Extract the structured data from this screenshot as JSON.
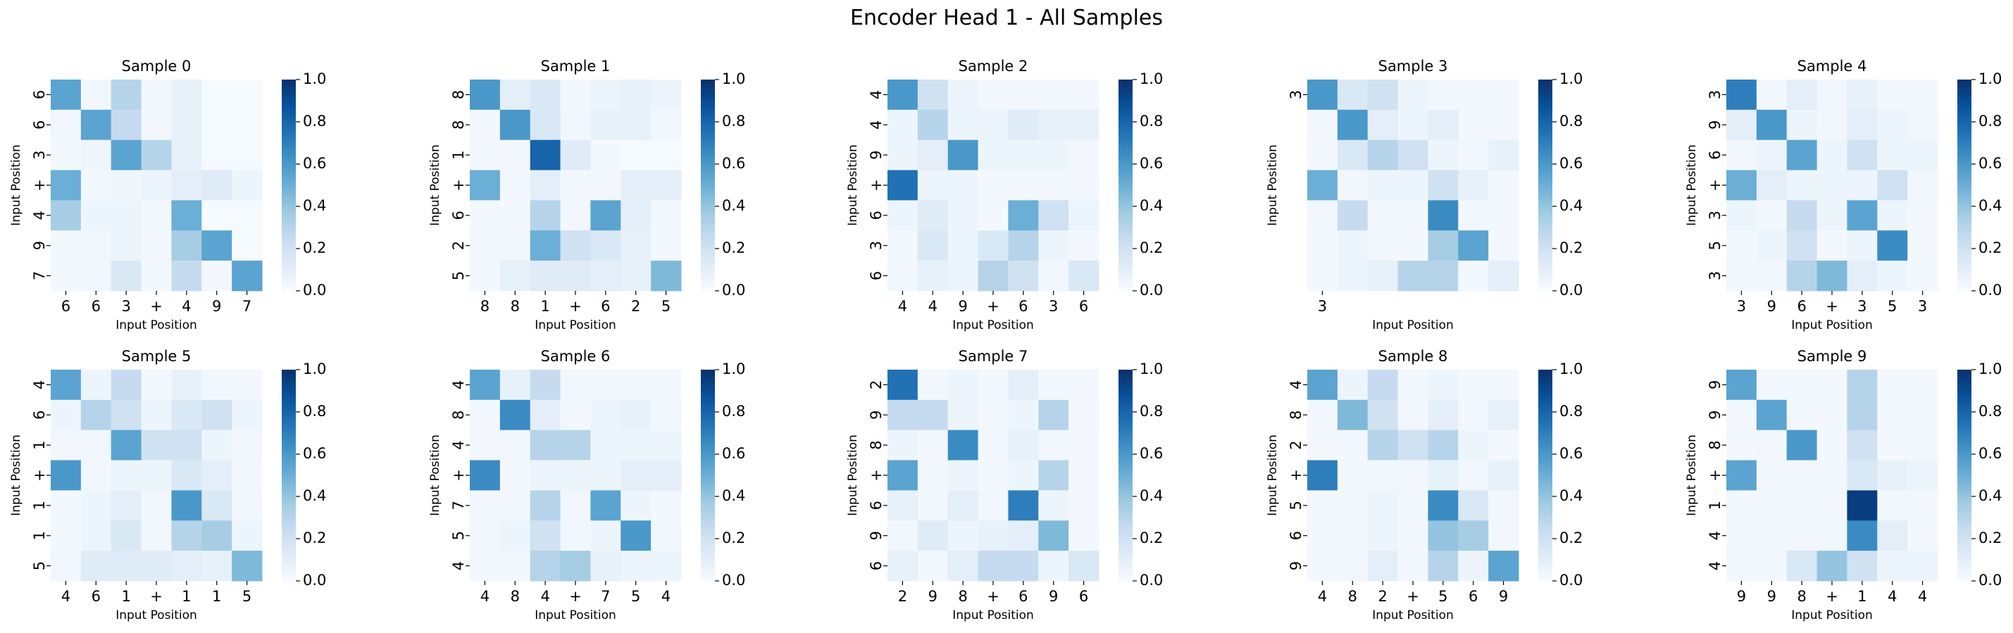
{
  "title": "Encoder Head 1 - All Samples",
  "colorscale": {
    "name": "Blues",
    "vmin": 0.0,
    "vmax": 1.0,
    "ticks": [
      "0.0",
      "0.2",
      "0.4",
      "0.6",
      "0.8",
      "1.0"
    ],
    "stops": [
      "#f7fbff",
      "#deebf7",
      "#c6dbef",
      "#9ecae1",
      "#6baed6",
      "#4292c6",
      "#2171b5",
      "#08519c",
      "#08306b"
    ]
  },
  "chart_data": [
    {
      "type": "heatmap",
      "title": "Sample 0",
      "xlabel": "Input Position",
      "ylabel": "Input Position",
      "x_tick_labels": [
        "6",
        "6",
        "3",
        "+",
        "4",
        "9",
        "7"
      ],
      "y_tick_labels": [
        "6",
        "6",
        "3",
        "+",
        "4",
        "9",
        "7"
      ],
      "values": [
        [
          0.55,
          0.03,
          0.3,
          0.03,
          0.08,
          0.01,
          0.01
        ],
        [
          0.03,
          0.55,
          0.25,
          0.03,
          0.08,
          0.01,
          0.01
        ],
        [
          0.02,
          0.04,
          0.55,
          0.3,
          0.08,
          0.01,
          0.01
        ],
        [
          0.5,
          0.03,
          0.04,
          0.05,
          0.1,
          0.12,
          0.05
        ],
        [
          0.35,
          0.05,
          0.05,
          0.03,
          0.5,
          0.01,
          0.01
        ],
        [
          0.02,
          0.03,
          0.05,
          0.03,
          0.35,
          0.55,
          0.01
        ],
        [
          0.02,
          0.03,
          0.15,
          0.02,
          0.25,
          0.02,
          0.55
        ]
      ]
    },
    {
      "type": "heatmap",
      "title": "Sample 1",
      "xlabel": "Input Position",
      "ylabel": "Input Position",
      "x_tick_labels": [
        "8",
        "8",
        "1",
        "+",
        "6",
        "2",
        "5"
      ],
      "y_tick_labels": [
        "8",
        "8",
        "1",
        "+",
        "6",
        "2",
        "5"
      ],
      "values": [
        [
          0.6,
          0.1,
          0.15,
          0.02,
          0.05,
          0.08,
          0.05
        ],
        [
          0.03,
          0.6,
          0.15,
          0.03,
          0.08,
          0.08,
          0.03
        ],
        [
          0.02,
          0.02,
          0.8,
          0.12,
          0.02,
          0.01,
          0.01
        ],
        [
          0.5,
          0.02,
          0.1,
          0.02,
          0.03,
          0.1,
          0.1
        ],
        [
          0.02,
          0.02,
          0.3,
          0.03,
          0.55,
          0.1,
          0.02
        ],
        [
          0.02,
          0.03,
          0.5,
          0.2,
          0.15,
          0.08,
          0.02
        ],
        [
          0.02,
          0.08,
          0.12,
          0.12,
          0.1,
          0.08,
          0.45
        ]
      ]
    },
    {
      "type": "heatmap",
      "title": "Sample 2",
      "xlabel": "Input Position",
      "ylabel": "Input Position",
      "x_tick_labels": [
        "4",
        "4",
        "9",
        "+",
        "6",
        "3",
        "6"
      ],
      "y_tick_labels": [
        "4",
        "4",
        "9",
        "+",
        "6",
        "3",
        "6"
      ],
      "values": [
        [
          0.6,
          0.2,
          0.05,
          0.02,
          0.03,
          0.02,
          0.02
        ],
        [
          0.05,
          0.3,
          0.05,
          0.05,
          0.12,
          0.08,
          0.08
        ],
        [
          0.05,
          0.1,
          0.6,
          0.05,
          0.05,
          0.05,
          0.03
        ],
        [
          0.75,
          0.05,
          0.05,
          0.02,
          0.02,
          0.02,
          0.02
        ],
        [
          0.05,
          0.12,
          0.05,
          0.02,
          0.5,
          0.2,
          0.05
        ],
        [
          0.02,
          0.15,
          0.05,
          0.15,
          0.3,
          0.05,
          0.02
        ],
        [
          0.03,
          0.08,
          0.05,
          0.3,
          0.2,
          0.03,
          0.15
        ]
      ]
    },
    {
      "type": "heatmap",
      "title": "Sample 3",
      "xlabel": "Input Position",
      "ylabel": "Input Position",
      "x_tick_labels": [
        "3",
        "",
        "",
        "",
        "",
        "",
        ""
      ],
      "y_tick_labels": [
        "3",
        "",
        "",
        "",
        "",
        "",
        ""
      ],
      "values": [
        [
          0.6,
          0.15,
          0.2,
          0.05,
          0.02,
          0.02,
          0.02
        ],
        [
          0.03,
          0.6,
          0.1,
          0.05,
          0.1,
          0.02,
          0.02
        ],
        [
          0.02,
          0.15,
          0.3,
          0.2,
          0.05,
          0.02,
          0.08
        ],
        [
          0.5,
          0.03,
          0.05,
          0.05,
          0.2,
          0.08,
          0.02
        ],
        [
          0.03,
          0.25,
          0.02,
          0.02,
          0.65,
          0.03,
          0.02
        ],
        [
          0.02,
          0.05,
          0.03,
          0.02,
          0.35,
          0.55,
          0.02
        ],
        [
          0.02,
          0.05,
          0.08,
          0.3,
          0.3,
          0.02,
          0.1
        ]
      ]
    },
    {
      "type": "heatmap",
      "title": "Sample 4",
      "xlabel": "Input Position",
      "ylabel": "Input Position",
      "x_tick_labels": [
        "3",
        "9",
        "6",
        "+",
        "3",
        "5",
        "3"
      ],
      "y_tick_labels": [
        "3",
        "9",
        "6",
        "+",
        "3",
        "5",
        "3"
      ],
      "values": [
        [
          0.7,
          0.03,
          0.1,
          0.03,
          0.08,
          0.02,
          0.02
        ],
        [
          0.1,
          0.6,
          0.05,
          0.03,
          0.1,
          0.05,
          0.03
        ],
        [
          0.03,
          0.05,
          0.55,
          0.05,
          0.2,
          0.05,
          0.05
        ],
        [
          0.5,
          0.1,
          0.05,
          0.05,
          0.05,
          0.2,
          0.03
        ],
        [
          0.05,
          0.02,
          0.25,
          0.05,
          0.55,
          0.05,
          0.02
        ],
        [
          0.02,
          0.05,
          0.2,
          0.02,
          0.05,
          0.65,
          0.02
        ],
        [
          0.02,
          0.03,
          0.3,
          0.45,
          0.1,
          0.05,
          0.02
        ]
      ]
    },
    {
      "type": "heatmap",
      "title": "Sample 5",
      "xlabel": "Input Position",
      "ylabel": "Input Position",
      "x_tick_labels": [
        "4",
        "6",
        "1",
        "+",
        "1",
        "1",
        "5"
      ],
      "y_tick_labels": [
        "4",
        "6",
        "1",
        "+",
        "1",
        "1",
        "5"
      ],
      "values": [
        [
          0.55,
          0.05,
          0.25,
          0.02,
          0.08,
          0.03,
          0.02
        ],
        [
          0.05,
          0.3,
          0.2,
          0.05,
          0.15,
          0.2,
          0.05
        ],
        [
          0.03,
          0.03,
          0.55,
          0.2,
          0.2,
          0.05,
          0.03
        ],
        [
          0.6,
          0.03,
          0.05,
          0.05,
          0.15,
          0.1,
          0.02
        ],
        [
          0.02,
          0.05,
          0.1,
          0.03,
          0.6,
          0.15,
          0.03
        ],
        [
          0.02,
          0.05,
          0.15,
          0.03,
          0.3,
          0.35,
          0.05
        ],
        [
          0.03,
          0.12,
          0.12,
          0.12,
          0.1,
          0.08,
          0.45
        ]
      ]
    },
    {
      "type": "heatmap",
      "title": "Sample 6",
      "xlabel": "Input Position",
      "ylabel": "Input Position",
      "x_tick_labels": [
        "4",
        "8",
        "4",
        "+",
        "7",
        "5",
        "4"
      ],
      "y_tick_labels": [
        "4",
        "8",
        "4",
        "+",
        "7",
        "5",
        "4"
      ],
      "values": [
        [
          0.55,
          0.08,
          0.25,
          0.03,
          0.03,
          0.02,
          0.02
        ],
        [
          0.03,
          0.65,
          0.1,
          0.03,
          0.05,
          0.08,
          0.03
        ],
        [
          0.03,
          0.03,
          0.3,
          0.3,
          0.05,
          0.05,
          0.05
        ],
        [
          0.65,
          0.03,
          0.05,
          0.05,
          0.05,
          0.1,
          0.1
        ],
        [
          0.02,
          0.03,
          0.3,
          0.03,
          0.55,
          0.05,
          0.02
        ],
        [
          0.02,
          0.05,
          0.2,
          0.03,
          0.05,
          0.6,
          0.03
        ],
        [
          0.02,
          0.03,
          0.3,
          0.35,
          0.08,
          0.05,
          0.05
        ]
      ]
    },
    {
      "type": "heatmap",
      "title": "Sample 7",
      "xlabel": "Input Position",
      "ylabel": "Input Position",
      "x_tick_labels": [
        "2",
        "9",
        "8",
        "+",
        "6",
        "9",
        "6"
      ],
      "y_tick_labels": [
        "2",
        "9",
        "8",
        "+",
        "6",
        "9",
        "6"
      ],
      "values": [
        [
          0.75,
          0.02,
          0.05,
          0.02,
          0.1,
          0.02,
          0.02
        ],
        [
          0.25,
          0.25,
          0.05,
          0.03,
          0.05,
          0.3,
          0.02
        ],
        [
          0.05,
          0.03,
          0.65,
          0.03,
          0.08,
          0.03,
          0.02
        ],
        [
          0.55,
          0.03,
          0.05,
          0.02,
          0.05,
          0.3,
          0.02
        ],
        [
          0.08,
          0.03,
          0.1,
          0.03,
          0.7,
          0.05,
          0.02
        ],
        [
          0.03,
          0.12,
          0.05,
          0.08,
          0.1,
          0.45,
          0.02
        ],
        [
          0.08,
          0.03,
          0.1,
          0.25,
          0.25,
          0.05,
          0.15
        ]
      ]
    },
    {
      "type": "heatmap",
      "title": "Sample 8",
      "xlabel": "Input Position",
      "ylabel": "Input Position",
      "x_tick_labels": [
        "4",
        "8",
        "2",
        "+",
        "5",
        "6",
        "9"
      ],
      "y_tick_labels": [
        "4",
        "8",
        "2",
        "+",
        "5",
        "6",
        "9"
      ],
      "values": [
        [
          0.55,
          0.05,
          0.25,
          0.02,
          0.05,
          0.02,
          0.02
        ],
        [
          0.03,
          0.45,
          0.2,
          0.03,
          0.1,
          0.03,
          0.08
        ],
        [
          0.02,
          0.02,
          0.3,
          0.2,
          0.3,
          0.05,
          0.02
        ],
        [
          0.7,
          0.02,
          0.03,
          0.03,
          0.08,
          0.03,
          0.08
        ],
        [
          0.02,
          0.03,
          0.05,
          0.03,
          0.65,
          0.15,
          0.03
        ],
        [
          0.02,
          0.03,
          0.05,
          0.03,
          0.4,
          0.35,
          0.03
        ],
        [
          0.02,
          0.03,
          0.1,
          0.03,
          0.3,
          0.05,
          0.55
        ]
      ]
    },
    {
      "type": "heatmap",
      "title": "Sample 9",
      "xlabel": "Input Position",
      "ylabel": "Input Position",
      "x_tick_labels": [
        "9",
        "9",
        "8",
        "+",
        "1",
        "4",
        "4"
      ],
      "y_tick_labels": [
        "9",
        "9",
        "8",
        "+",
        "1",
        "4",
        "4"
      ],
      "values": [
        [
          0.55,
          0.02,
          0.02,
          0.02,
          0.3,
          0.02,
          0.02
        ],
        [
          0.03,
          0.55,
          0.03,
          0.02,
          0.3,
          0.02,
          0.02
        ],
        [
          0.02,
          0.03,
          0.6,
          0.02,
          0.2,
          0.02,
          0.02
        ],
        [
          0.55,
          0.03,
          0.03,
          0.03,
          0.15,
          0.08,
          0.05
        ],
        [
          0.02,
          0.02,
          0.03,
          0.03,
          0.95,
          0.02,
          0.02
        ],
        [
          0.02,
          0.02,
          0.03,
          0.03,
          0.65,
          0.1,
          0.02
        ],
        [
          0.02,
          0.02,
          0.15,
          0.4,
          0.2,
          0.05,
          0.05
        ]
      ]
    }
  ]
}
